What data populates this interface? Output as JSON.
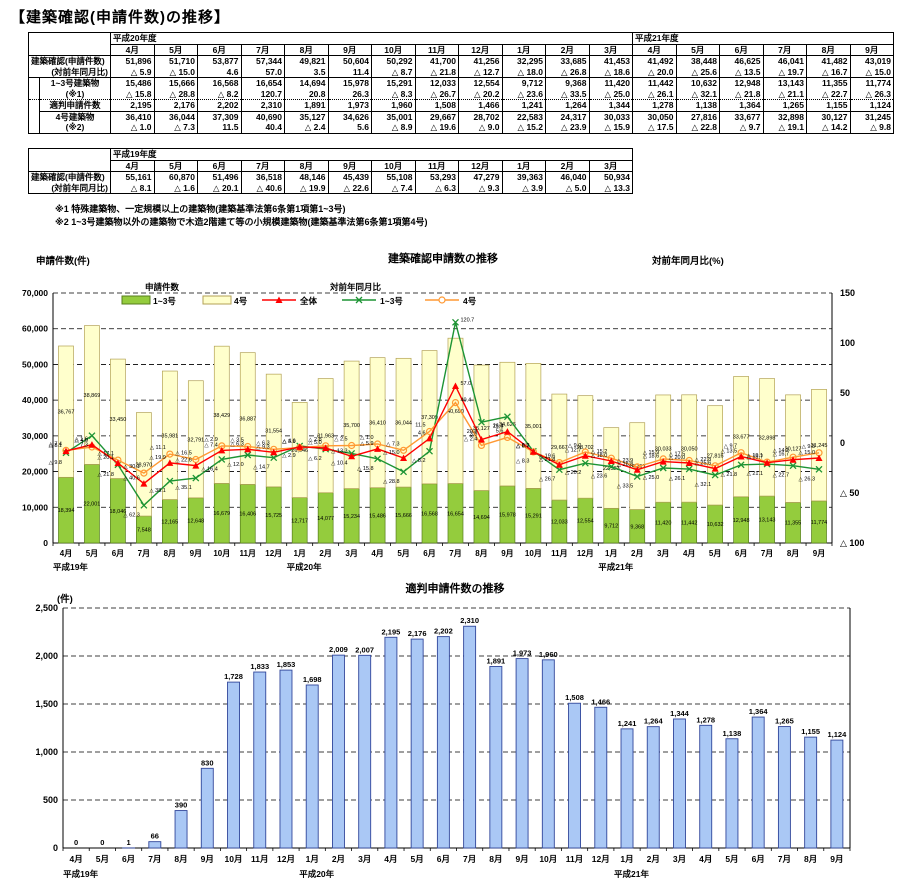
{
  "page_title": "【建築確認(申請件数)の推移】",
  "notes": {
    "note1": "※1 特殊建築物、一定規模以上の建築物(建築基準法第6条第1項第1~3号)",
    "note2": "※2 1~3号建築物以外の建築物で木造2階建て等の小規模建築物(建築基準法第6条第1項第4号)"
  },
  "table1": {
    "year_spans": [
      {
        "label": "平成20年度",
        "cols": 12
      },
      {
        "label": "平成21年度",
        "cols": 6
      }
    ],
    "months": [
      "4月",
      "5月",
      "6月",
      "7月",
      "8月",
      "9月",
      "10月",
      "11月",
      "12月",
      "1月",
      "2月",
      "3月",
      "4月",
      "5月",
      "6月",
      "7月",
      "8月",
      "9月"
    ],
    "rows": [
      {
        "label": "建築確認(申請件数)",
        "indent": false,
        "align": "left",
        "cls": "nb",
        "values": [
          "51,896",
          "51,710",
          "53,877",
          "57,344",
          "49,821",
          "50,604",
          "50,292",
          "41,700",
          "41,256",
          "32,295",
          "33,685",
          "41,453",
          "41,492",
          "38,448",
          "46,625",
          "46,041",
          "41,482",
          "43,019"
        ]
      },
      {
        "label": "(対前年同月比)",
        "indent": false,
        "align": "right",
        "cls": "nt",
        "values": [
          "△ 5.9",
          "△ 15.0",
          "4.6",
          "57.0",
          "3.5",
          "11.4",
          "△ 8.7",
          "△ 21.8",
          "△ 12.7",
          "△ 18.0",
          "△ 26.8",
          "△ 18.6",
          "△ 20.0",
          "△ 25.6",
          "△ 13.5",
          "△ 19.7",
          "△ 16.7",
          "△ 15.0"
        ]
      },
      {
        "label": "1~3号建築物",
        "indent": true,
        "cls": "nb",
        "values": [
          "15,486",
          "15,666",
          "16,568",
          "16,654",
          "14,694",
          "15,978",
          "15,291",
          "12,033",
          "12,554",
          "9,712",
          "9,368",
          "11,420",
          "11,442",
          "10,632",
          "12,948",
          "13,143",
          "11,355",
          "11,774"
        ]
      },
      {
        "label": "(※1)",
        "indent": true,
        "cls": "nt nb",
        "values": [
          "△ 15.8",
          "△ 28.8",
          "△ 8.2",
          "120.7",
          "20.8",
          "26.3",
          "△ 8.3",
          "△ 26.7",
          "△ 20.2",
          "△ 23.6",
          "△ 33.5",
          "△ 25.0",
          "△ 26.1",
          "△ 32.1",
          "△ 21.8",
          "△ 21.1",
          "△ 22.7",
          "△ 26.3"
        ]
      },
      {
        "label": "適判申請件数",
        "indent": true,
        "cls": "dt",
        "values": [
          "2,195",
          "2,176",
          "2,202",
          "2,310",
          "1,891",
          "1,973",
          "1,960",
          "1,508",
          "1,466",
          "1,241",
          "1,264",
          "1,344",
          "1,278",
          "1,138",
          "1,364",
          "1,265",
          "1,155",
          "1,124"
        ]
      },
      {
        "label": "4号建築物",
        "indent": true,
        "cls": "nb",
        "values": [
          "36,410",
          "36,044",
          "37,309",
          "40,690",
          "35,127",
          "34,626",
          "35,001",
          "29,667",
          "28,702",
          "22,583",
          "24,317",
          "30,033",
          "30,050",
          "27,816",
          "33,677",
          "32,898",
          "30,127",
          "31,245"
        ]
      },
      {
        "label": "(※2)",
        "indent": true,
        "cls": "nt",
        "values": [
          "△ 1.0",
          "△ 7.3",
          "11.5",
          "40.4",
          "△ 2.4",
          "5.6",
          "△ 8.9",
          "△ 19.6",
          "△ 9.0",
          "△ 15.2",
          "△ 23.9",
          "△ 15.9",
          "△ 17.5",
          "△ 22.8",
          "△ 9.7",
          "△ 19.1",
          "△ 14.2",
          "△ 9.8"
        ]
      }
    ]
  },
  "table2": {
    "year_spans": [
      {
        "label": "平成19年度",
        "cols": 12
      }
    ],
    "months": [
      "4月",
      "5月",
      "6月",
      "7月",
      "8月",
      "9月",
      "10月",
      "11月",
      "12月",
      "1月",
      "2月",
      "3月"
    ],
    "rows": [
      {
        "label": "建築確認(申請件数)",
        "indent": false,
        "align": "left",
        "cls": "nb",
        "values": [
          "55,161",
          "60,870",
          "51,496",
          "36,518",
          "48,146",
          "45,439",
          "55,108",
          "53,293",
          "47,279",
          "39,363",
          "46,040",
          "50,934"
        ]
      },
      {
        "label": "(対前年同月比)",
        "indent": false,
        "align": "right",
        "cls": "nt",
        "values": [
          "△ 8.1",
          "△ 1.6",
          "△ 20.1",
          "△ 40.6",
          "△ 19.9",
          "△ 22.6",
          "△ 7.4",
          "△ 6.3",
          "△ 9.3",
          "△ 3.9",
          "△ 5.0",
          "△ 13.3"
        ]
      }
    ]
  },
  "chart_data": [
    {
      "type": "bar+line",
      "title": "建築確認申請数の推移",
      "left_axis_label": "申請件数(件)",
      "right_axis_label": "対前年同月比(%)",
      "left_ticks": [
        0,
        10000,
        20000,
        30000,
        40000,
        50000,
        60000,
        70000
      ],
      "left_tick_labels": [
        "0",
        "10,000",
        "20,000",
        "30,000",
        "40,000",
        "50,000",
        "60,000",
        "70,000"
      ],
      "right_ticks": [
        150,
        100,
        50,
        0,
        -50,
        -100
      ],
      "right_tick_labels": [
        "150",
        "100",
        "50",
        "0",
        "△ 50",
        "△ 100"
      ],
      "left_ylim": [
        0,
        70000
      ],
      "right_ylim": [
        -100,
        150
      ],
      "grid": "dashed horizontal",
      "months": [
        "4月",
        "5月",
        "6月",
        "7月",
        "8月",
        "9月",
        "10月",
        "11月",
        "12月",
        "1月",
        "2月",
        "3月",
        "4月",
        "5月",
        "6月",
        "7月",
        "8月",
        "9月",
        "10月",
        "11月",
        "12月",
        "1月",
        "2月",
        "3月",
        "4月",
        "5月",
        "6月",
        "7月",
        "8月",
        "9月"
      ],
      "year_labels": [
        {
          "index": 0,
          "text": "平成19年"
        },
        {
          "index": 9,
          "text": "平成20年"
        },
        {
          "index": 21,
          "text": "平成21年"
        }
      ],
      "legend": {
        "bars_group_title": "申請件数",
        "lines_group_title": "対前年同月比",
        "bar_items": [
          {
            "label": "1~3号"
          },
          {
            "label": "4号"
          }
        ],
        "line_items": [
          {
            "label": "全体",
            "marker": "triangle"
          },
          {
            "label": "1~3号",
            "marker": "x"
          },
          {
            "label": "4号",
            "marker": "circle"
          }
        ]
      },
      "series": [
        {
          "name": "1~3号(棒・積上げ下段)",
          "kind": "bar",
          "values": [
            18394,
            22001,
            18046,
            7548,
            12165,
            12648,
            16679,
            16406,
            15725,
            12717,
            14077,
            15234,
            15486,
            15666,
            16568,
            16654,
            14694,
            15978,
            15291,
            12033,
            12554,
            9712,
            9368,
            11420,
            11442,
            10632,
            12948,
            13143,
            11355,
            11774
          ]
        },
        {
          "name": "4号(棒・積上げ上段)",
          "kind": "bar",
          "values": [
            36767,
            38869,
            33450,
            28970,
            35981,
            32791,
            38429,
            36887,
            31554,
            26646,
            31963,
            35700,
            36410,
            36044,
            37309,
            40690,
            35127,
            34626,
            35001,
            29667,
            28702,
            22583,
            24317,
            30033,
            30050,
            27816,
            33677,
            32898,
            30127,
            31245
          ]
        },
        {
          "name": "全体(対前年同月比%)",
          "kind": "line",
          "values": [
            -8.1,
            -1.6,
            -20.1,
            -40.6,
            -19.9,
            -22.6,
            -7.4,
            -6.3,
            -9.3,
            -3.9,
            -5.0,
            -13.3,
            -5.9,
            -15.0,
            4.6,
            57.0,
            3.5,
            11.4,
            -8.7,
            -21.8,
            -12.7,
            -18.0,
            -26.8,
            -18.6,
            -20.0,
            -25.6,
            -13.5,
            -19.7,
            -16.7,
            -15.0
          ]
        },
        {
          "name": "1~3号(対前年同月比%)",
          "kind": "line",
          "values": [
            -9.8,
            7.3,
            -21.8,
            -62.3,
            -38.1,
            -35.1,
            -16.4,
            -12.0,
            -14.7,
            -2.9,
            -6.2,
            -10.4,
            -15.8,
            -28.8,
            -8.2,
            120.7,
            20.8,
            26.3,
            -8.3,
            -26.7,
            -20.2,
            -23.6,
            -33.5,
            -25.0,
            -26.1,
            -32.1,
            -21.8,
            -21.1,
            -22.7,
            -26.3
          ]
        },
        {
          "name": "4号(対前年同月比%)",
          "kind": "line",
          "values": [
            -7.4,
            -4.0,
            -17.1,
            -30.1,
            -11.1,
            -16.5,
            -2.9,
            -3.5,
            -6.3,
            -4.6,
            -2.8,
            -2.5,
            -1.0,
            -7.3,
            11.5,
            40.4,
            -2.4,
            5.6,
            -8.9,
            -19.6,
            -9.0,
            -15.2,
            -23.9,
            -15.9,
            -17.5,
            -22.8,
            -9.7,
            -19.1,
            -14.2,
            -9.8
          ]
        }
      ]
    },
    {
      "type": "bar",
      "title": "適判申請件数の推移",
      "ylabel": "(件)",
      "ylim": [
        0,
        2500
      ],
      "yticks": [
        0,
        500,
        1000,
        1500,
        2000,
        2500
      ],
      "ytick_labels": [
        "0",
        "500",
        "1,000",
        "1,500",
        "2,000",
        "2,500"
      ],
      "grid": "dashed horizontal",
      "months": [
        "4月",
        "5月",
        "6月",
        "7月",
        "8月",
        "9月",
        "10月",
        "11月",
        "12月",
        "1月",
        "2月",
        "3月",
        "4月",
        "5月",
        "6月",
        "7月",
        "8月",
        "9月",
        "10月",
        "11月",
        "12月",
        "1月",
        "2月",
        "3月",
        "4月",
        "5月",
        "6月",
        "7月",
        "8月",
        "9月"
      ],
      "year_labels": [
        {
          "index": 0,
          "text": "平成19年"
        },
        {
          "index": 9,
          "text": "平成20年"
        },
        {
          "index": 21,
          "text": "平成21年"
        }
      ],
      "values": [
        0,
        0,
        1,
        66,
        390,
        830,
        1728,
        1833,
        1853,
        1698,
        2009,
        2007,
        2195,
        2176,
        2202,
        2310,
        1891,
        1973,
        1960,
        1508,
        1466,
        1241,
        1264,
        1344,
        1278,
        1138,
        1364,
        1265,
        1155,
        1124
      ]
    }
  ],
  "colors": {
    "bar_1_3_fill": "#94cc3d",
    "bar_1_3_stroke": "#567d1c",
    "bar_4_fill": "#ffffcc",
    "bar_4_stroke": "#b3a256",
    "line_total": "#ff0000",
    "line_1_3": "#1d9434",
    "line_4": "#ff9933",
    "bar2_fill": "#aac8f5",
    "bar2_stroke": "#31479b",
    "grid": "#000000"
  }
}
